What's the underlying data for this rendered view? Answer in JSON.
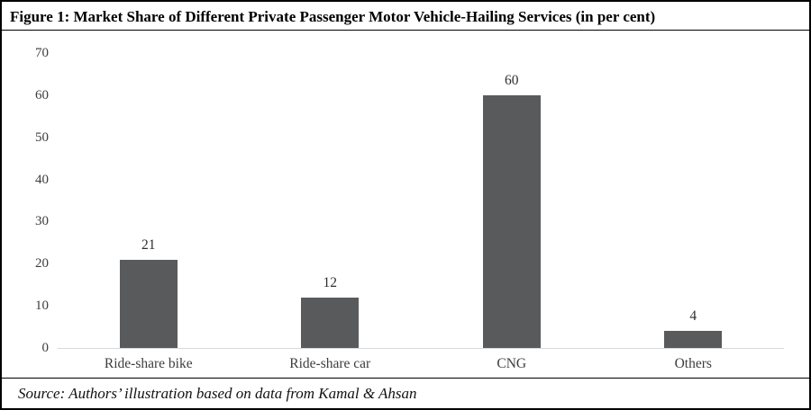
{
  "figure": {
    "title": "Figure 1: Market Share of Different Private Passenger Motor Vehicle-Hailing Services (in per cent)",
    "source": "Source: Authors’ illustration based on data from Kamal & Ahsan"
  },
  "chart_data": {
    "type": "bar",
    "title": "Figure 1: Market Share of Different Private Passenger Motor Vehicle-Hailing Services (in per cent)",
    "categories": [
      "Ride-share bike",
      "Ride-share car",
      "CNG",
      "Others"
    ],
    "values": [
      21,
      12,
      60,
      4
    ],
    "data_labels": [
      "21",
      "12",
      "60",
      "4"
    ],
    "xlabel": "",
    "ylabel": "",
    "ylim": [
      0,
      70
    ],
    "yticks": [
      0,
      10,
      20,
      30,
      40,
      50,
      60,
      70
    ],
    "grid": false,
    "legend": "none",
    "bar_color": "#595a5c",
    "axis_line_color": "#d9d9d9",
    "tick_label_color": "#3d3d3d",
    "source_note": "Source: Authors’ illustration based on data from Kamal & Ahsan"
  }
}
